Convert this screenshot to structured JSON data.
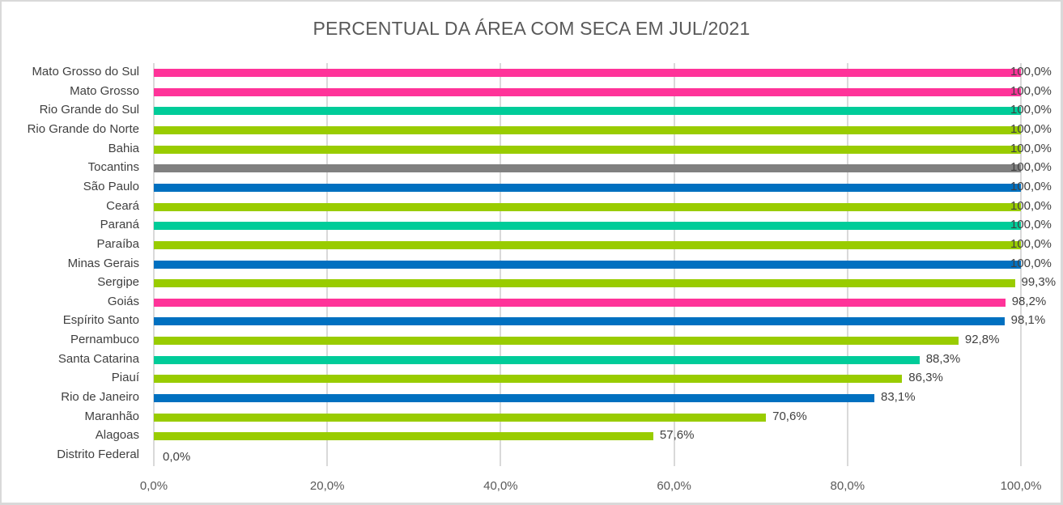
{
  "chart_data": {
    "type": "bar",
    "orientation": "horizontal",
    "title": "PERCENTUAL DA ÁREA COM SECA EM JUL/2021",
    "xlabel": "",
    "ylabel": "",
    "xlim": [
      0,
      100
    ],
    "grid": true,
    "legend": null,
    "x_ticks": [
      "0,0%",
      "20,0%",
      "40,0%",
      "60,0%",
      "80,0%",
      "100,0%"
    ],
    "categories": [
      "Mato Grosso do Sul",
      "Mato Grosso",
      "Rio Grande do Sul",
      "Rio Grande do Norte",
      "Bahia",
      "Tocantins",
      "São Paulo",
      "Ceará",
      "Paraná",
      "Paraíba",
      "Minas Gerais",
      "Sergipe",
      "Goiás",
      "Espírito Santo",
      "Pernambuco",
      "Santa Catarina",
      "Piauí",
      "Rio de Janeiro",
      "Maranhão",
      "Alagoas",
      "Distrito Federal"
    ],
    "values": [
      100.0,
      100.0,
      100.0,
      100.0,
      100.0,
      100.0,
      100.0,
      100.0,
      100.0,
      100.0,
      100.0,
      99.3,
      98.2,
      98.1,
      92.8,
      88.3,
      86.3,
      83.1,
      70.6,
      57.6,
      0.0
    ],
    "labels": [
      "100,0%",
      "100,0%",
      "100,0%",
      "100,0%",
      "100,0%",
      "100,0%",
      "100,0%",
      "100,0%",
      "100,0%",
      "100,0%",
      "100,0%",
      "99,3%",
      "98,2%",
      "98,1%",
      "92,8%",
      "88,3%",
      "86,3%",
      "83,1%",
      "70,6%",
      "57,6%",
      "0,0%"
    ],
    "colors": [
      "#ff3399",
      "#ff3399",
      "#00cc99",
      "#99cc00",
      "#99cc00",
      "#808080",
      "#0070c0",
      "#99cc00",
      "#00cc99",
      "#99cc00",
      "#0070c0",
      "#99cc00",
      "#ff3399",
      "#0070c0",
      "#99cc00",
      "#00cc99",
      "#99cc00",
      "#0070c0",
      "#99cc00",
      "#99cc00",
      "#99cc00"
    ]
  }
}
